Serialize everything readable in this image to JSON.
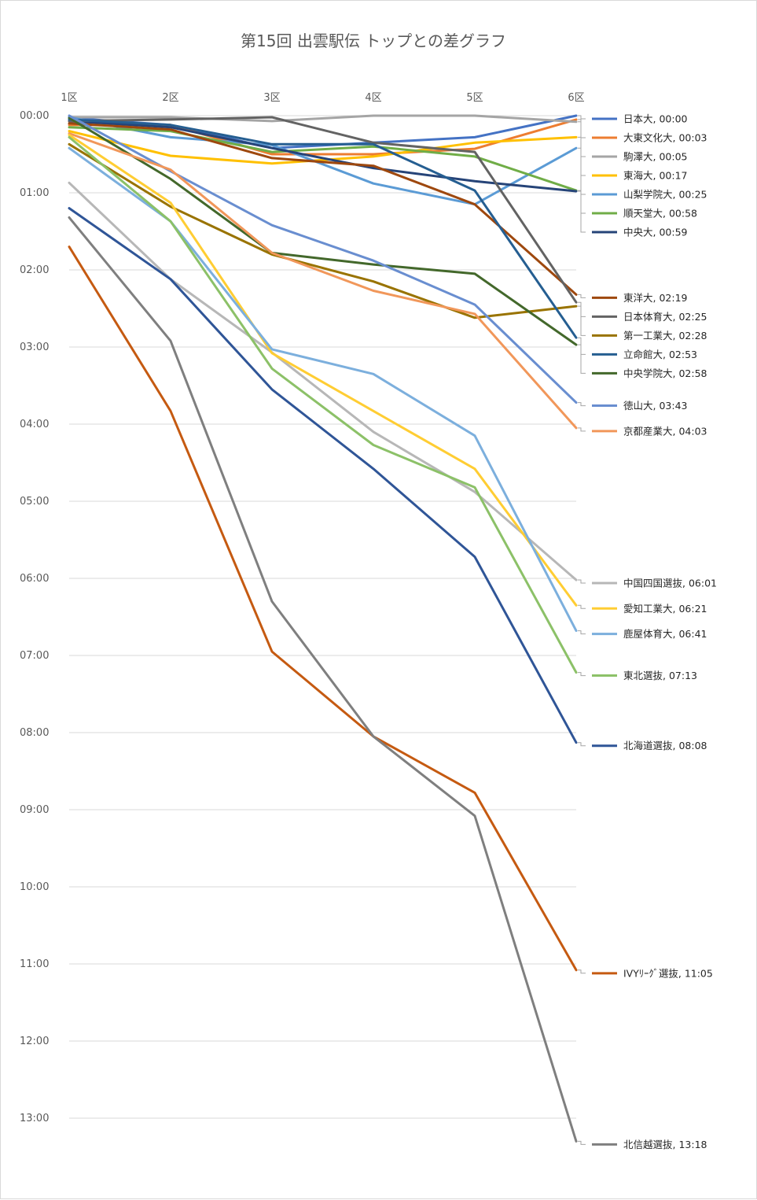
{
  "chart_data": {
    "type": "line",
    "title": "第15回 出雲駅伝 トップとの差グラフ",
    "categories": [
      "1区",
      "2区",
      "3区",
      "4区",
      "5区",
      "6区"
    ],
    "y_tick_labels": [
      "00:00",
      "01:00",
      "02:00",
      "03:00",
      "04:00",
      "05:00",
      "06:00",
      "07:00",
      "08:00",
      "09:00",
      "10:00",
      "11:00",
      "12:00",
      "13:00"
    ],
    "y_unit": "minutes behind leader",
    "ylim": [
      0,
      13.3
    ],
    "y_inverted": true,
    "grid": true,
    "legend_position": "right, labels at line ends",
    "series": [
      {
        "name": "日本大",
        "label": "日本大, 00:00",
        "color": "#4472C4",
        "values": [
          0.03,
          0.12,
          0.42,
          0.35,
          0.28,
          0.0
        ]
      },
      {
        "name": "大東文化大",
        "label": "大東文化大, 00:03",
        "color": "#ED7D31",
        "values": [
          0.12,
          0.12,
          0.5,
          0.5,
          0.43,
          0.05
        ]
      },
      {
        "name": "駒澤大",
        "label": "駒澤大, 00:05",
        "color": "#A5A5A5",
        "values": [
          0.02,
          0.02,
          0.07,
          0.0,
          0.0,
          0.08
        ]
      },
      {
        "name": "東海大",
        "label": "東海大, 00:17",
        "color": "#FFC000",
        "values": [
          0.2,
          0.52,
          0.62,
          0.53,
          0.35,
          0.28
        ]
      },
      {
        "name": "山梨学院大",
        "label": "山梨学院大, 00:25",
        "color": "#5B9BD5",
        "values": [
          0.02,
          0.28,
          0.38,
          0.88,
          1.15,
          0.42
        ]
      },
      {
        "name": "順天堂大",
        "label": "順天堂大, 00:58",
        "color": "#70AD47",
        "values": [
          0.15,
          0.2,
          0.47,
          0.4,
          0.53,
          0.97
        ]
      },
      {
        "name": "中央大",
        "label": "中央大, 00:59",
        "color": "#264478",
        "values": [
          0.07,
          0.15,
          0.42,
          0.68,
          0.85,
          0.98
        ]
      },
      {
        "name": "東洋大",
        "label": "東洋大, 02:19",
        "color": "#9E480E",
        "values": [
          0.1,
          0.18,
          0.55,
          0.65,
          1.15,
          2.32
        ]
      },
      {
        "name": "日本体育大",
        "label": "日本体育大, 02:25",
        "color": "#636363",
        "values": [
          0.07,
          0.05,
          0.02,
          0.35,
          0.47,
          2.42
        ]
      },
      {
        "name": "第一工業大",
        "label": "第一工業大, 02:28",
        "color": "#997300",
        "values": [
          0.37,
          1.18,
          1.8,
          2.15,
          2.62,
          2.47
        ]
      },
      {
        "name": "立命館大",
        "label": "立命館大, 02:53",
        "color": "#255E91",
        "values": [
          0.05,
          0.12,
          0.37,
          0.37,
          0.97,
          2.88
        ]
      },
      {
        "name": "中央学院大",
        "label": "中央学院大, 02:58",
        "color": "#43682B",
        "values": [
          0.03,
          0.82,
          1.78,
          1.93,
          2.05,
          2.97
        ]
      },
      {
        "name": "徳山大",
        "label": "徳山大, 03:43",
        "color": "#698ED0",
        "values": [
          0.0,
          0.72,
          1.42,
          1.88,
          2.45,
          3.72
        ]
      },
      {
        "name": "京都産業大",
        "label": "京都産業大, 04:03",
        "color": "#F1975A",
        "values": [
          0.23,
          0.7,
          1.78,
          2.27,
          2.57,
          4.05
        ]
      },
      {
        "name": "中国四国選抜",
        "label": "中国四国選抜, 06:01",
        "color": "#B7B7B7",
        "values": [
          0.87,
          2.12,
          3.07,
          4.1,
          4.88,
          6.02
        ]
      },
      {
        "name": "愛知工業大",
        "label": "愛知工業大, 06:21",
        "color": "#FFCD33",
        "values": [
          0.25,
          1.13,
          3.08,
          3.83,
          4.58,
          6.35
        ]
      },
      {
        "name": "鹿屋体育大",
        "label": "鹿屋体育大, 06:41",
        "color": "#7CAFDD",
        "values": [
          0.42,
          1.37,
          3.03,
          3.35,
          4.15,
          6.68
        ]
      },
      {
        "name": "東北選抜",
        "label": "東北選抜, 07:13",
        "color": "#8CC168",
        "values": [
          0.28,
          1.37,
          3.28,
          4.27,
          4.82,
          7.22
        ]
      },
      {
        "name": "北海道選抜",
        "label": "北海道選抜, 08:08",
        "color": "#2F5597",
        "values": [
          1.2,
          2.12,
          3.55,
          4.58,
          5.72,
          8.13
        ]
      },
      {
        "name": "IVYﾘｰｸﾞ選抜",
        "label": "IVYﾘｰｸﾞ選抜, 11:05",
        "color": "#C55A11",
        "values": [
          1.7,
          3.83,
          6.95,
          8.05,
          8.78,
          11.08
        ]
      },
      {
        "name": "北信越選抜",
        "label": "北信越選抜, 13:18",
        "color": "#7F7F7F",
        "values": [
          1.32,
          2.92,
          6.3,
          8.05,
          9.08,
          13.3
        ]
      }
    ]
  }
}
